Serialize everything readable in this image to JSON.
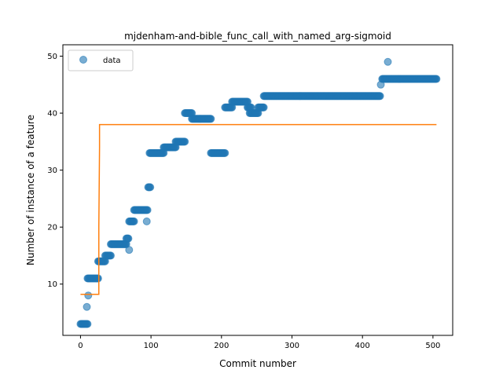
{
  "chart_data": {
    "type": "scatter",
    "title": "mjdenham-and-bible_func_call_with_named_arg-sigmoid",
    "xlabel": "Commit number",
    "ylabel": "Number of instance of a feature",
    "xlim": [
      -25,
      528
    ],
    "ylim": [
      1,
      52
    ],
    "xticks": [
      0,
      100,
      200,
      300,
      400,
      500
    ],
    "yticks": [
      10,
      20,
      30,
      40,
      50
    ],
    "grid": false,
    "legend": {
      "position": "top-left",
      "entries": [
        "data"
      ]
    },
    "colors": {
      "data": "#1f77b4",
      "fit": "#ff7f0e"
    },
    "series": [
      {
        "name": "data",
        "kind": "scatter",
        "segments": [
          {
            "y": 3,
            "x_start": 0,
            "x_end": 10
          },
          {
            "y": 6,
            "x_start": 9,
            "x_end": 9
          },
          {
            "y": 8,
            "x_start": 11,
            "x_end": 11
          },
          {
            "y": 11,
            "x_start": 10,
            "x_end": 25
          },
          {
            "y": 14,
            "x_start": 25,
            "x_end": 35
          },
          {
            "y": 15,
            "x_start": 35,
            "x_end": 43
          },
          {
            "y": 17,
            "x_start": 43,
            "x_end": 65
          },
          {
            "y": 18,
            "x_start": 65,
            "x_end": 68
          },
          {
            "y": 16,
            "x_start": 69,
            "x_end": 69
          },
          {
            "y": 21,
            "x_start": 69,
            "x_end": 76
          },
          {
            "y": 23,
            "x_start": 76,
            "x_end": 95
          },
          {
            "y": 21,
            "x_start": 94,
            "x_end": 94
          },
          {
            "y": 27,
            "x_start": 96,
            "x_end": 99
          },
          {
            "y": 33,
            "x_start": 98,
            "x_end": 118
          },
          {
            "y": 34,
            "x_start": 118,
            "x_end": 135
          },
          {
            "y": 35,
            "x_start": 135,
            "x_end": 148
          },
          {
            "y": 40,
            "x_start": 148,
            "x_end": 158
          },
          {
            "y": 39,
            "x_start": 158,
            "x_end": 185
          },
          {
            "y": 33,
            "x_start": 185,
            "x_end": 205
          },
          {
            "y": 41,
            "x_start": 205,
            "x_end": 215
          },
          {
            "y": 42,
            "x_start": 215,
            "x_end": 237
          },
          {
            "y": 41,
            "x_start": 237,
            "x_end": 242
          },
          {
            "y": 40,
            "x_start": 240,
            "x_end": 252
          },
          {
            "y": 41,
            "x_start": 252,
            "x_end": 260
          },
          {
            "y": 43,
            "x_start": 260,
            "x_end": 425
          },
          {
            "y": 45,
            "x_start": 426,
            "x_end": 426
          },
          {
            "y": 46,
            "x_start": 428,
            "x_end": 505
          },
          {
            "y": 49,
            "x_start": 436,
            "x_end": 436
          }
        ]
      },
      {
        "name": "",
        "kind": "line",
        "x": [
          0,
          26,
          26,
          27,
          27,
          505
        ],
        "y": [
          8.2,
          8.2,
          20,
          34,
          38,
          38
        ]
      }
    ]
  }
}
